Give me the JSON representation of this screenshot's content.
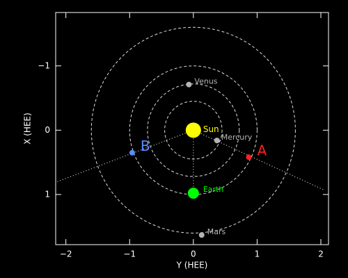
{
  "chart_data": {
    "type": "scatter",
    "x_label": "Y (HEE)",
    "y_label": "X (HEE)",
    "xlim": [
      -2.16,
      2.12
    ],
    "ylim": [
      -1.83,
      1.78
    ],
    "y_inverted": true,
    "xticks": [
      {
        "value": -2,
        "label": "−2"
      },
      {
        "value": -1,
        "label": "−1"
      },
      0,
      1,
      2
    ],
    "yticks": [
      {
        "value": -1,
        "label": "−1"
      },
      0,
      1
    ],
    "orbits": [
      0.45,
      0.72,
      1.0,
      1.6
    ],
    "lines": [
      {
        "x": [
          0,
          0
        ],
        "y": [
          0,
          0.98
        ]
      },
      {
        "x": [
          0,
          2.05
        ],
        "y": [
          0,
          0.93
        ]
      },
      {
        "x": [
          0,
          -2.16
        ],
        "y": [
          0,
          0.81
        ]
      }
    ],
    "points": [
      {
        "name": "Sun",
        "color": "#ffff00",
        "x": 0,
        "y": 0
      },
      {
        "name": "Venus",
        "color": "#b4b4b4",
        "x": -0.07,
        "y": -0.71
      },
      {
        "name": "Mercury",
        "color": "#b4b4b4",
        "x": 0.37,
        "y": 0.16
      },
      {
        "name": "Earth",
        "color": "#00ff00",
        "x": 0,
        "y": 0.98
      },
      {
        "name": "Mars",
        "color": "#b4b4b4",
        "x": 0.13,
        "y": 1.63
      },
      {
        "name": "A",
        "color": "#ff2020",
        "x": 0.87,
        "y": 0.42
      },
      {
        "name": "B",
        "color": "#5a8cff",
        "x": -0.96,
        "y": 0.35
      }
    ]
  }
}
